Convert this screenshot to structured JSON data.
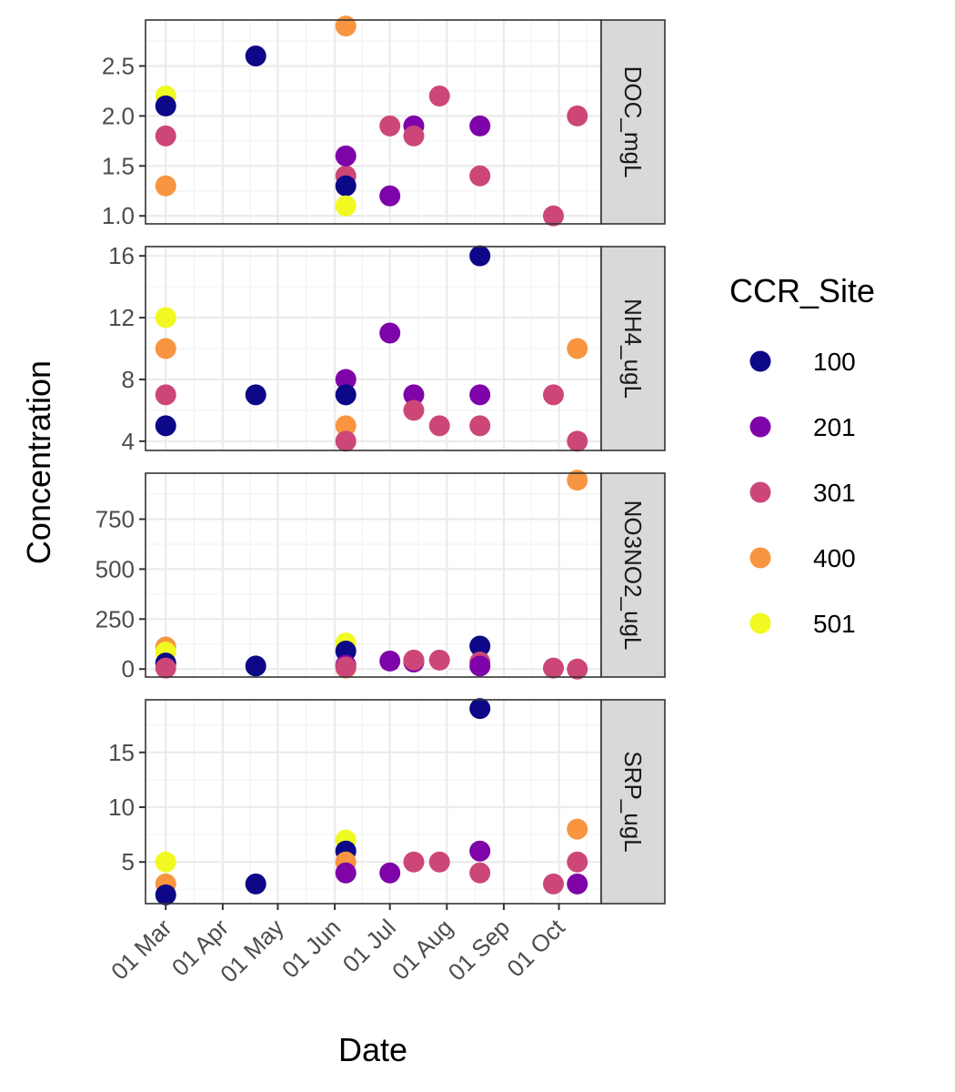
{
  "chart_data": {
    "type": "scatter",
    "facet": "rows",
    "xlabel": "Date",
    "ylabel": "Concentration",
    "x_ticks": [
      "01 Mar",
      "01 Apr",
      "01 May",
      "01 Jun",
      "01 Jul",
      "01 Aug",
      "01 Sep",
      "01 Oct"
    ],
    "x_tick_dates": [
      "2021-03-01",
      "2021-04-01",
      "2021-05-01",
      "2021-06-01",
      "2021-07-01",
      "2021-08-01",
      "2021-09-01",
      "2021-10-01"
    ],
    "xlim": [
      "2021-02-18",
      "2021-10-24"
    ],
    "grid": true,
    "legend": {
      "title": "CCR_Site",
      "position": "right",
      "entries": [
        {
          "label": "100",
          "color": "#0d0887"
        },
        {
          "label": "201",
          "color": "#7e03a8"
        },
        {
          "label": "301",
          "color": "#cc4778"
        },
        {
          "label": "400",
          "color": "#f89540"
        },
        {
          "label": "501",
          "color": "#f0f921"
        }
      ]
    },
    "panels": [
      {
        "name": "DOC_mgL",
        "ylim": [
          0.92,
          2.96
        ],
        "y_ticks": [
          1.0,
          1.5,
          2.0,
          2.5
        ],
        "y_tick_labels": [
          "1.0",
          "1.5",
          "2.0",
          "2.5"
        ],
        "y_minor": [
          1.25,
          1.75,
          2.25,
          2.75
        ],
        "points": [
          {
            "date": "2021-03-01",
            "value": 2.2,
            "site": "501"
          },
          {
            "date": "2021-03-01",
            "value": 2.1,
            "site": "100"
          },
          {
            "date": "2021-03-01",
            "value": 1.8,
            "site": "301"
          },
          {
            "date": "2021-03-01",
            "value": 1.3,
            "site": "400"
          },
          {
            "date": "2021-04-19",
            "value": 2.6,
            "site": "100"
          },
          {
            "date": "2021-06-07",
            "value": 2.9,
            "site": "400"
          },
          {
            "date": "2021-06-07",
            "value": 1.4,
            "site": "301"
          },
          {
            "date": "2021-06-07",
            "value": 1.6,
            "site": "201"
          },
          {
            "date": "2021-06-07",
            "value": 1.3,
            "site": "100"
          },
          {
            "date": "2021-06-07",
            "value": 1.1,
            "site": "501"
          },
          {
            "date": "2021-07-01",
            "value": 1.9,
            "site": "301"
          },
          {
            "date": "2021-07-01",
            "value": 1.2,
            "site": "201"
          },
          {
            "date": "2021-07-14",
            "value": 1.9,
            "site": "201"
          },
          {
            "date": "2021-07-14",
            "value": 1.8,
            "site": "301"
          },
          {
            "date": "2021-07-28",
            "value": 2.2,
            "site": "301"
          },
          {
            "date": "2021-08-19",
            "value": 1.9,
            "site": "201"
          },
          {
            "date": "2021-08-19",
            "value": 1.4,
            "site": "301"
          },
          {
            "date": "2021-09-28",
            "value": 1.0,
            "site": "301"
          },
          {
            "date": "2021-10-11",
            "value": 2.0,
            "site": "301"
          }
        ]
      },
      {
        "name": "NH4_ugL",
        "ylim": [
          3.4,
          16.6
        ],
        "y_ticks": [
          4,
          8,
          12,
          16
        ],
        "y_tick_labels": [
          "4",
          "8",
          "12",
          "16"
        ],
        "y_minor": [
          6,
          10,
          14
        ],
        "points": [
          {
            "date": "2021-03-01",
            "value": 12,
            "site": "501"
          },
          {
            "date": "2021-03-01",
            "value": 10,
            "site": "400"
          },
          {
            "date": "2021-03-01",
            "value": 7,
            "site": "301"
          },
          {
            "date": "2021-03-01",
            "value": 5,
            "site": "100"
          },
          {
            "date": "2021-04-19",
            "value": 7,
            "site": "100"
          },
          {
            "date": "2021-06-07",
            "value": 8,
            "site": "201"
          },
          {
            "date": "2021-06-07",
            "value": 7,
            "site": "100"
          },
          {
            "date": "2021-06-07",
            "value": 5,
            "site": "400"
          },
          {
            "date": "2021-06-07",
            "value": 4,
            "site": "301"
          },
          {
            "date": "2021-07-01",
            "value": 11,
            "site": "201"
          },
          {
            "date": "2021-07-14",
            "value": 7,
            "site": "201"
          },
          {
            "date": "2021-07-14",
            "value": 6,
            "site": "301"
          },
          {
            "date": "2021-07-28",
            "value": 5,
            "site": "301"
          },
          {
            "date": "2021-08-19",
            "value": 16,
            "site": "100"
          },
          {
            "date": "2021-08-19",
            "value": 7,
            "site": "201"
          },
          {
            "date": "2021-08-19",
            "value": 5,
            "site": "301"
          },
          {
            "date": "2021-09-28",
            "value": 7,
            "site": "301"
          },
          {
            "date": "2021-10-11",
            "value": 10,
            "site": "400"
          },
          {
            "date": "2021-10-11",
            "value": 4,
            "site": "301"
          }
        ]
      },
      {
        "name": "NO3NO2_ugL",
        "ylim": [
          -40,
          980
        ],
        "y_ticks": [
          0,
          250,
          500,
          750
        ],
        "y_tick_labels": [
          "0",
          "250",
          "500",
          "750"
        ],
        "y_minor": [
          125,
          375,
          625,
          875
        ],
        "points": [
          {
            "date": "2021-03-01",
            "value": 110,
            "site": "400"
          },
          {
            "date": "2021-03-01",
            "value": 85,
            "site": "501"
          },
          {
            "date": "2021-03-01",
            "value": 30,
            "site": "100"
          },
          {
            "date": "2021-03-01",
            "value": 5,
            "site": "301"
          },
          {
            "date": "2021-04-19",
            "value": 15,
            "site": "100"
          },
          {
            "date": "2021-06-07",
            "value": 130,
            "site": "501"
          },
          {
            "date": "2021-06-07",
            "value": 90,
            "site": "100"
          },
          {
            "date": "2021-06-07",
            "value": 20,
            "site": "201"
          },
          {
            "date": "2021-06-07",
            "value": 5,
            "site": "400"
          },
          {
            "date": "2021-06-07",
            "value": 10,
            "site": "301"
          },
          {
            "date": "2021-07-01",
            "value": 40,
            "site": "201"
          },
          {
            "date": "2021-07-14",
            "value": 35,
            "site": "201"
          },
          {
            "date": "2021-07-14",
            "value": 45,
            "site": "301"
          },
          {
            "date": "2021-07-28",
            "value": 45,
            "site": "301"
          },
          {
            "date": "2021-08-19",
            "value": 115,
            "site": "100"
          },
          {
            "date": "2021-08-19",
            "value": 35,
            "site": "301"
          },
          {
            "date": "2021-08-19",
            "value": 15,
            "site": "201"
          },
          {
            "date": "2021-09-28",
            "value": 5,
            "site": "301"
          },
          {
            "date": "2021-10-11",
            "value": 945,
            "site": "400"
          },
          {
            "date": "2021-10-11",
            "value": 0,
            "site": "301"
          }
        ]
      },
      {
        "name": "SRP_ugL",
        "ylim": [
          1.2,
          19.8
        ],
        "y_ticks": [
          5,
          10,
          15
        ],
        "y_tick_labels": [
          "5",
          "10",
          "15"
        ],
        "y_minor": [
          2.5,
          7.5,
          12.5,
          17.5
        ],
        "points": [
          {
            "date": "2021-03-01",
            "value": 5,
            "site": "501"
          },
          {
            "date": "2021-03-01",
            "value": 3,
            "site": "400"
          },
          {
            "date": "2021-03-01",
            "value": 2,
            "site": "100"
          },
          {
            "date": "2021-04-19",
            "value": 3,
            "site": "100"
          },
          {
            "date": "2021-06-07",
            "value": 7,
            "site": "501"
          },
          {
            "date": "2021-06-07",
            "value": 6,
            "site": "100"
          },
          {
            "date": "2021-06-07",
            "value": 5,
            "site": "400"
          },
          {
            "date": "2021-06-07",
            "value": 4,
            "site": "201"
          },
          {
            "date": "2021-07-01",
            "value": 4,
            "site": "201"
          },
          {
            "date": "2021-07-14",
            "value": 5,
            "site": "301"
          },
          {
            "date": "2021-07-28",
            "value": 5,
            "site": "301"
          },
          {
            "date": "2021-08-19",
            "value": 19,
            "site": "100"
          },
          {
            "date": "2021-08-19",
            "value": 6,
            "site": "201"
          },
          {
            "date": "2021-08-19",
            "value": 4,
            "site": "301"
          },
          {
            "date": "2021-09-28",
            "value": 3,
            "site": "301"
          },
          {
            "date": "2021-10-11",
            "value": 8,
            "site": "400"
          },
          {
            "date": "2021-10-11",
            "value": 5,
            "site": "301"
          },
          {
            "date": "2021-10-11",
            "value": 3,
            "site": "201"
          }
        ]
      }
    ]
  }
}
